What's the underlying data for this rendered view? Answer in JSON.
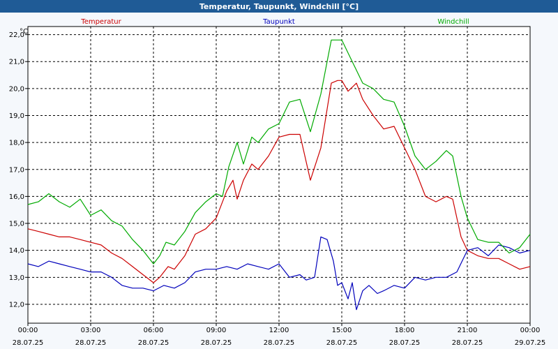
{
  "window": {
    "title": "Temperatur, Taupunkt, Windchill [°C]"
  },
  "chart_data": {
    "type": "line",
    "title": "Temperatur, Taupunkt, Windchill [°C]",
    "ylabel": "°C",
    "xlabel": "",
    "ylim": [
      11.3,
      22.3
    ],
    "yticks": [
      12.0,
      13.0,
      14.0,
      15.0,
      16.0,
      17.0,
      18.0,
      19.0,
      20.0,
      21.0,
      22.0
    ],
    "ytick_labels": [
      "12,0",
      "13,0",
      "14,0",
      "15,0",
      "16,0",
      "17,0",
      "18,0",
      "19,0",
      "20,0",
      "21,0",
      "22,0"
    ],
    "xlim_hours": [
      0,
      24
    ],
    "xticks": [
      {
        "hour": 0,
        "time": "00:00",
        "date": "28.07.25"
      },
      {
        "hour": 3,
        "time": "03:00",
        "date": "28.07.25"
      },
      {
        "hour": 6,
        "time": "06:00",
        "date": "28.07.25"
      },
      {
        "hour": 9,
        "time": "09:00",
        "date": "28.07.25"
      },
      {
        "hour": 12,
        "time": "12:00",
        "date": "28.07.25"
      },
      {
        "hour": 15,
        "time": "15:00",
        "date": "28.07.25"
      },
      {
        "hour": 18,
        "time": "18:00",
        "date": "28.07.25"
      },
      {
        "hour": 21,
        "time": "21:00",
        "date": "28.07.25"
      },
      {
        "hour": 24,
        "time": "00:00",
        "date": "29.07.25"
      }
    ],
    "grid": true,
    "legend_placement": "top",
    "series": [
      {
        "name": "Temperatur",
        "color": "#cc0000",
        "points": [
          [
            0,
            14.8
          ],
          [
            0.5,
            14.7
          ],
          [
            1,
            14.6
          ],
          [
            1.5,
            14.5
          ],
          [
            2,
            14.5
          ],
          [
            2.5,
            14.4
          ],
          [
            3,
            14.3
          ],
          [
            3.5,
            14.2
          ],
          [
            4,
            13.9
          ],
          [
            4.5,
            13.7
          ],
          [
            5,
            13.4
          ],
          [
            5.5,
            13.1
          ],
          [
            6,
            12.8
          ],
          [
            6.3,
            13.0
          ],
          [
            6.7,
            13.4
          ],
          [
            7,
            13.3
          ],
          [
            7.5,
            13.8
          ],
          [
            8,
            14.6
          ],
          [
            8.5,
            14.8
          ],
          [
            9,
            15.2
          ],
          [
            9.5,
            16.2
          ],
          [
            9.8,
            16.6
          ],
          [
            10,
            15.9
          ],
          [
            10.3,
            16.6
          ],
          [
            10.7,
            17.2
          ],
          [
            11,
            17.0
          ],
          [
            11.5,
            17.5
          ],
          [
            12,
            18.2
          ],
          [
            12.5,
            18.3
          ],
          [
            13,
            18.3
          ],
          [
            13.5,
            16.6
          ],
          [
            14,
            17.8
          ],
          [
            14.5,
            20.2
          ],
          [
            14.8,
            20.3
          ],
          [
            15,
            20.3
          ],
          [
            15.3,
            19.9
          ],
          [
            15.7,
            20.2
          ],
          [
            16,
            19.6
          ],
          [
            16.5,
            19.0
          ],
          [
            17,
            18.5
          ],
          [
            17.5,
            18.6
          ],
          [
            18,
            17.8
          ],
          [
            18.5,
            17.0
          ],
          [
            19,
            16.0
          ],
          [
            19.5,
            15.8
          ],
          [
            20,
            16.0
          ],
          [
            20.3,
            15.9
          ],
          [
            20.7,
            14.5
          ],
          [
            21,
            14.0
          ],
          [
            21.5,
            13.8
          ],
          [
            22,
            13.7
          ],
          [
            22.5,
            13.7
          ],
          [
            23,
            13.5
          ],
          [
            23.5,
            13.3
          ],
          [
            24,
            13.4
          ]
        ]
      },
      {
        "name": "Taupunkt",
        "color": "#0000bb",
        "points": [
          [
            0,
            13.5
          ],
          [
            0.5,
            13.4
          ],
          [
            1,
            13.6
          ],
          [
            1.5,
            13.5
          ],
          [
            2,
            13.4
          ],
          [
            2.5,
            13.3
          ],
          [
            3,
            13.2
          ],
          [
            3.5,
            13.2
          ],
          [
            4,
            13.0
          ],
          [
            4.5,
            12.7
          ],
          [
            5,
            12.6
          ],
          [
            5.5,
            12.6
          ],
          [
            6,
            12.5
          ],
          [
            6.5,
            12.7
          ],
          [
            7,
            12.6
          ],
          [
            7.5,
            12.8
          ],
          [
            8,
            13.2
          ],
          [
            8.5,
            13.3
          ],
          [
            9,
            13.3
          ],
          [
            9.5,
            13.4
          ],
          [
            10,
            13.3
          ],
          [
            10.5,
            13.5
          ],
          [
            11,
            13.4
          ],
          [
            11.5,
            13.3
          ],
          [
            12,
            13.5
          ],
          [
            12.5,
            13.0
          ],
          [
            13,
            13.1
          ],
          [
            13.3,
            12.9
          ],
          [
            13.7,
            13.0
          ],
          [
            14,
            14.5
          ],
          [
            14.3,
            14.4
          ],
          [
            14.6,
            13.6
          ],
          [
            14.8,
            12.7
          ],
          [
            15,
            12.8
          ],
          [
            15.3,
            12.2
          ],
          [
            15.5,
            12.8
          ],
          [
            15.7,
            11.8
          ],
          [
            16,
            12.5
          ],
          [
            16.3,
            12.7
          ],
          [
            16.7,
            12.4
          ],
          [
            17,
            12.5
          ],
          [
            17.5,
            12.7
          ],
          [
            18,
            12.6
          ],
          [
            18.5,
            13.0
          ],
          [
            19,
            12.9
          ],
          [
            19.5,
            13.0
          ],
          [
            20,
            13.0
          ],
          [
            20.5,
            13.2
          ],
          [
            21,
            14.0
          ],
          [
            21.5,
            14.1
          ],
          [
            22,
            13.8
          ],
          [
            22.5,
            14.2
          ],
          [
            23,
            14.1
          ],
          [
            23.5,
            13.9
          ],
          [
            24,
            14.0
          ]
        ]
      },
      {
        "name": "Windchill",
        "color": "#00aa00",
        "points": [
          [
            0,
            15.7
          ],
          [
            0.5,
            15.8
          ],
          [
            1,
            16.1
          ],
          [
            1.5,
            15.8
          ],
          [
            2,
            15.6
          ],
          [
            2.5,
            15.9
          ],
          [
            3,
            15.3
          ],
          [
            3.5,
            15.5
          ],
          [
            4,
            15.1
          ],
          [
            4.5,
            14.9
          ],
          [
            5,
            14.4
          ],
          [
            5.5,
            14.0
          ],
          [
            6,
            13.5
          ],
          [
            6.3,
            13.8
          ],
          [
            6.6,
            14.3
          ],
          [
            7,
            14.2
          ],
          [
            7.5,
            14.7
          ],
          [
            8,
            15.4
          ],
          [
            8.5,
            15.8
          ],
          [
            9,
            16.1
          ],
          [
            9.3,
            16.0
          ],
          [
            9.6,
            17.1
          ],
          [
            10,
            18.0
          ],
          [
            10.3,
            17.2
          ],
          [
            10.7,
            18.2
          ],
          [
            11,
            18.0
          ],
          [
            11.5,
            18.5
          ],
          [
            12,
            18.7
          ],
          [
            12.5,
            19.5
          ],
          [
            13,
            19.6
          ],
          [
            13.5,
            18.4
          ],
          [
            14,
            19.8
          ],
          [
            14.5,
            21.8
          ],
          [
            15,
            21.8
          ],
          [
            15.5,
            21.0
          ],
          [
            16,
            20.2
          ],
          [
            16.5,
            20.0
          ],
          [
            17,
            19.6
          ],
          [
            17.5,
            19.5
          ],
          [
            18,
            18.6
          ],
          [
            18.5,
            17.5
          ],
          [
            19,
            17.0
          ],
          [
            19.5,
            17.3
          ],
          [
            20,
            17.7
          ],
          [
            20.3,
            17.5
          ],
          [
            20.7,
            16.0
          ],
          [
            21,
            15.2
          ],
          [
            21.5,
            14.4
          ],
          [
            22,
            14.3
          ],
          [
            22.5,
            14.3
          ],
          [
            23,
            13.9
          ],
          [
            23.5,
            14.1
          ],
          [
            24,
            14.6
          ]
        ]
      }
    ]
  }
}
